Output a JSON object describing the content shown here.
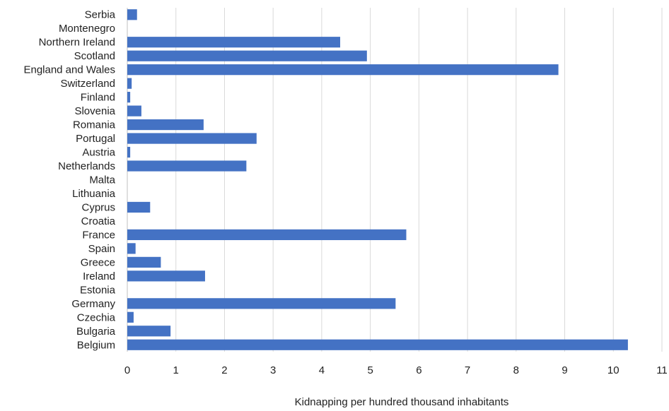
{
  "chart_data": {
    "type": "bar",
    "orientation": "horizontal",
    "title": "",
    "xlabel": "Kidnapping per hundred thousand inhabitants",
    "ylabel": "",
    "xlim": [
      0,
      11
    ],
    "xticks": [
      0,
      1,
      2,
      3,
      4,
      5,
      6,
      7,
      8,
      9,
      10,
      11
    ],
    "grid": "vertical",
    "legend": "none",
    "bar_color": "#4472C4",
    "categories": [
      "Serbia",
      "Montenegro",
      "Northern Ireland",
      "Scotland",
      "England and Wales",
      "Switzerland",
      "Finland",
      "Slovenia",
      "Romania",
      "Portugal",
      "Austria",
      "Netherlands",
      "Malta",
      "Lithuania",
      "Cyprus",
      "Croatia",
      "France",
      "Spain",
      "Greece",
      "Ireland",
      "Estonia",
      "Germany",
      "Czechia",
      "Bulgaria",
      "Belgium"
    ],
    "values": [
      0.2,
      0,
      4.38,
      4.93,
      8.87,
      0.09,
      0.06,
      0.29,
      1.57,
      2.66,
      0.06,
      2.45,
      0,
      0,
      0.47,
      0,
      5.74,
      0.17,
      0.69,
      1.6,
      0,
      5.52,
      0.13,
      0.89,
      10.3
    ]
  }
}
